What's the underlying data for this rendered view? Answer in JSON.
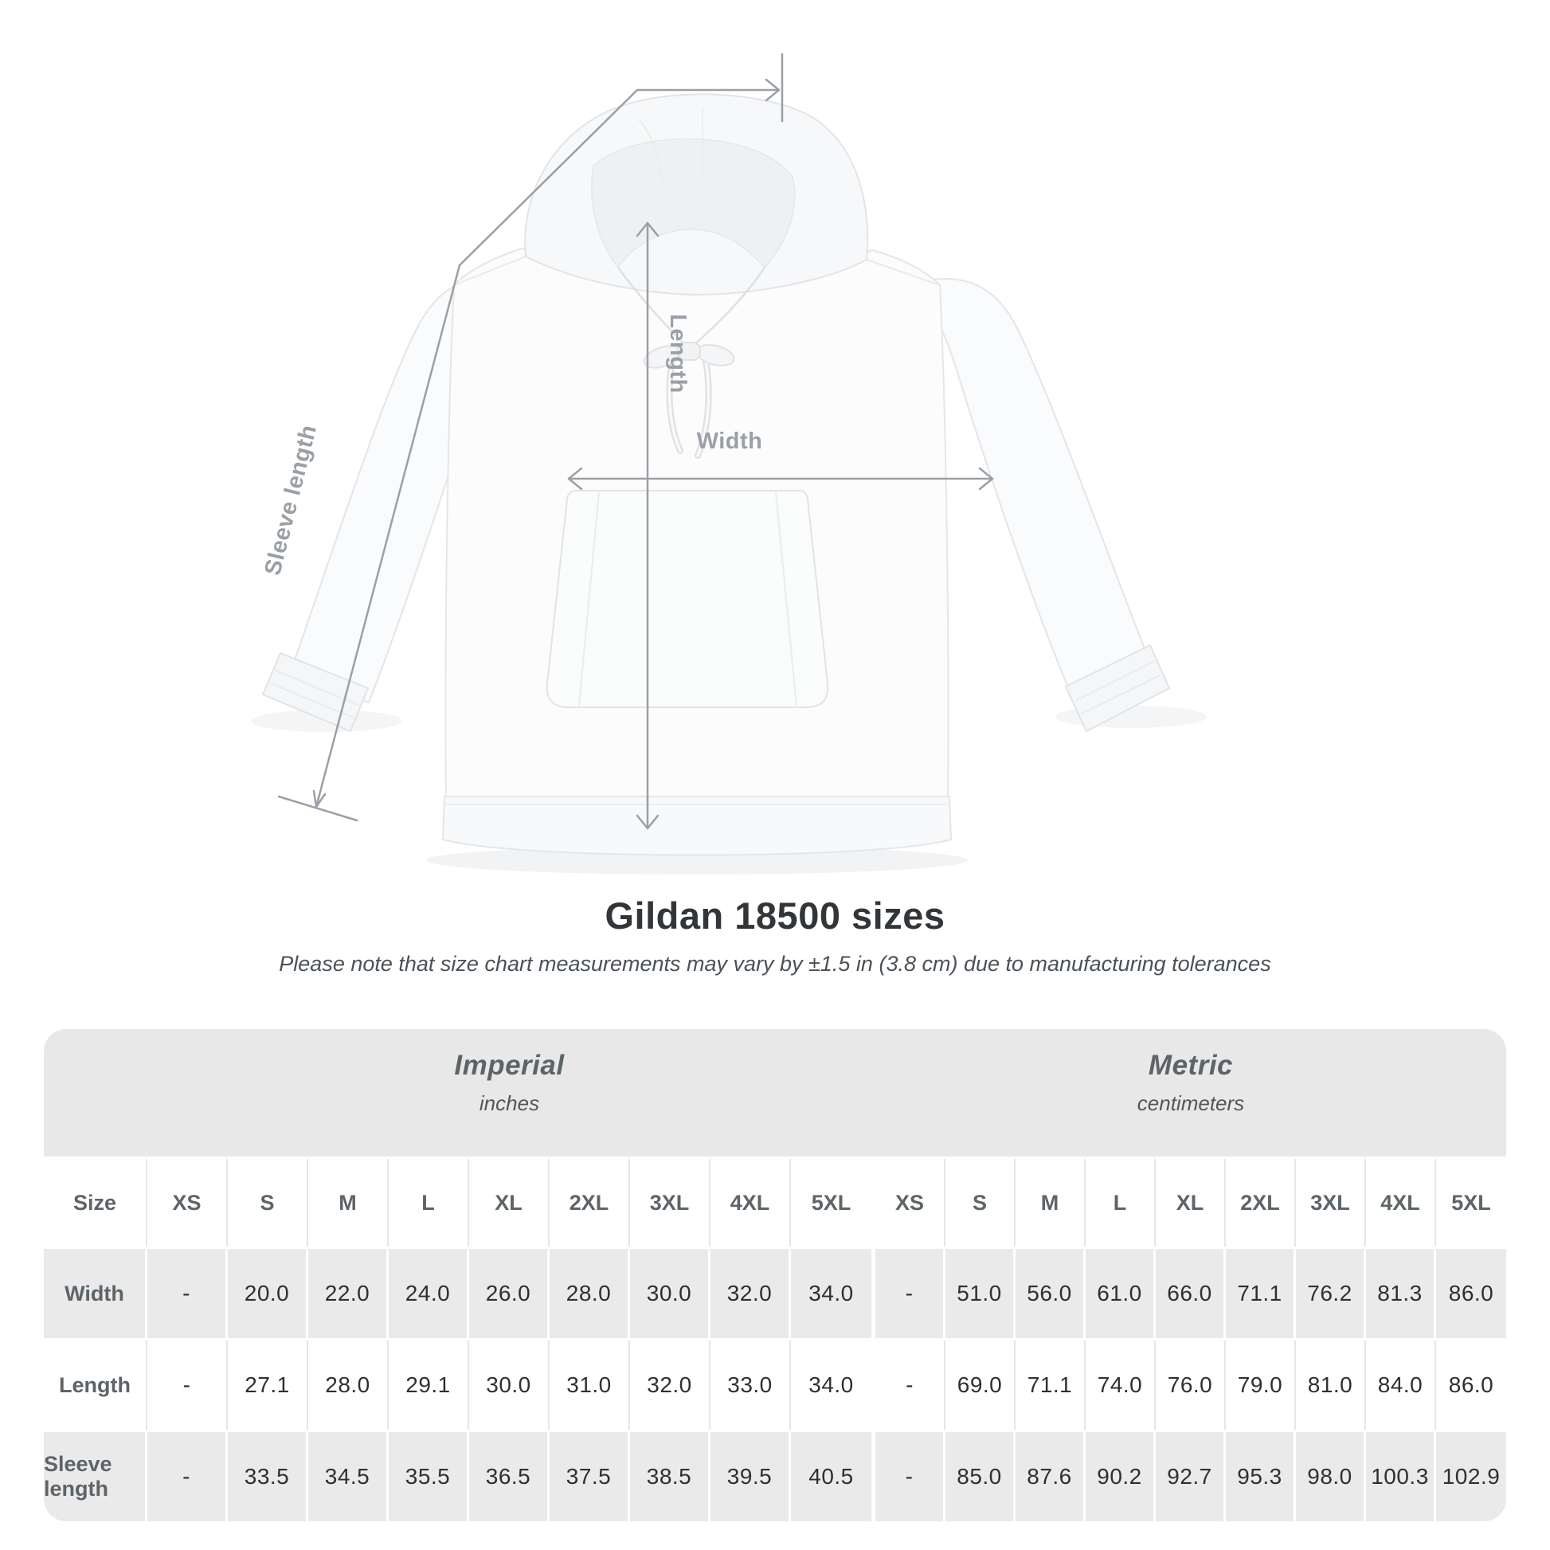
{
  "diagram": {
    "labels": {
      "length": "Length",
      "width": "Width",
      "sleeve_length": "Sleeve length"
    },
    "line_color": "#9aa0a5",
    "label_color": "#9aa0a6"
  },
  "heading": {
    "title": "Gildan 18500 sizes",
    "subtitle": "Please note that size chart measurements may vary by ±1.5 in (3.8 cm) due to manufacturing tolerances"
  },
  "table": {
    "size_label": "Size",
    "groups": [
      {
        "name": "Imperial",
        "unit": "inches"
      },
      {
        "name": "Metric",
        "unit": "centimeters"
      }
    ],
    "colors": {
      "band": "#e8e8e8",
      "shaded_row": "#eaeaeb",
      "separator": "#ffffff",
      "header_text": "#5d6468",
      "value_text": "#2d3033"
    }
  },
  "chart_data": {
    "type": "table",
    "title": "Gildan 18500 sizes",
    "note": "Measurements may vary by ±1.5 in (3.8 cm)",
    "unit_groups": [
      "Imperial (inches)",
      "Metric (centimeters)"
    ],
    "sizes": [
      "XS",
      "S",
      "M",
      "L",
      "XL",
      "2XL",
      "3XL",
      "4XL",
      "5XL"
    ],
    "rows": [
      {
        "label": "Width",
        "imperial_inches": [
          "-",
          "20.0",
          "22.0",
          "24.0",
          "26.0",
          "28.0",
          "30.0",
          "32.0",
          "34.0"
        ],
        "metric_centimeters": [
          "-",
          "51.0",
          "56.0",
          "61.0",
          "66.0",
          "71.1",
          "76.2",
          "81.3",
          "86.0"
        ]
      },
      {
        "label": "Length",
        "imperial_inches": [
          "-",
          "27.1",
          "28.0",
          "29.1",
          "30.0",
          "31.0",
          "32.0",
          "33.0",
          "34.0"
        ],
        "metric_centimeters": [
          "-",
          "69.0",
          "71.1",
          "74.0",
          "76.0",
          "79.0",
          "81.0",
          "84.0",
          "86.0"
        ]
      },
      {
        "label": "Sleeve length",
        "imperial_inches": [
          "-",
          "33.5",
          "34.5",
          "35.5",
          "36.5",
          "37.5",
          "38.5",
          "39.5",
          "40.5"
        ],
        "metric_centimeters": [
          "-",
          "85.0",
          "87.6",
          "90.2",
          "92.7",
          "95.3",
          "98.0",
          "100.3",
          "102.9"
        ]
      }
    ]
  }
}
